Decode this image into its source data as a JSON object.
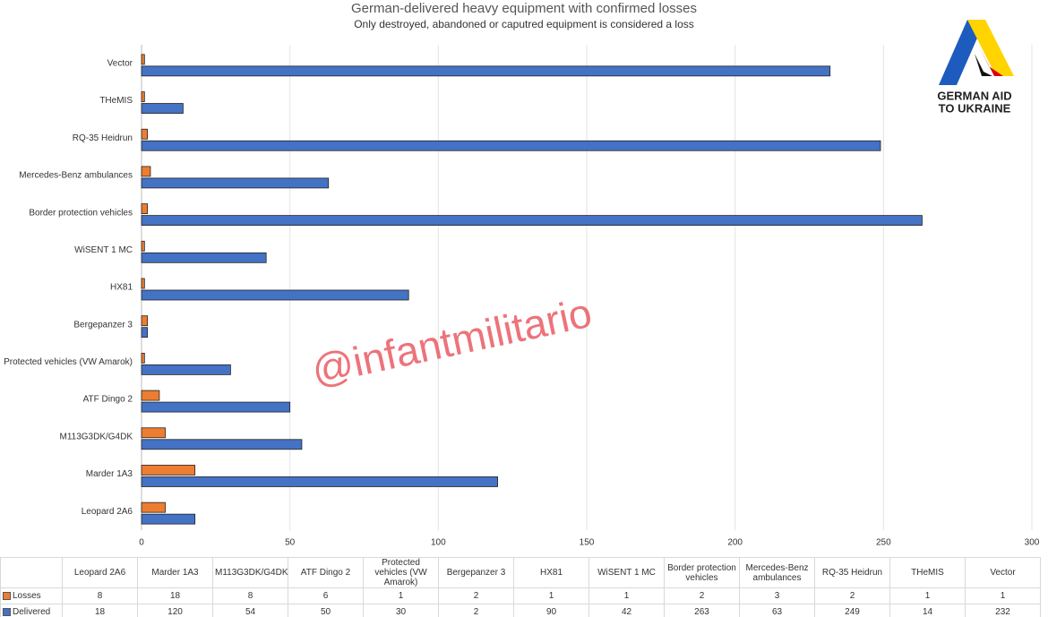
{
  "chart_data": {
    "type": "hbar",
    "title": "German-delivered heavy equipment with confirmed losses",
    "subtitle": "Only destroyed, abandoned or caputred equipment is considered a loss",
    "categories": [
      "Leopard 2A6",
      "Marder 1A3",
      "M113G3DK/G4DK",
      "ATF Dingo 2",
      "Protected vehicles (VW Amarok)",
      "Bergepanzer 3",
      "HX81",
      "WiSENT 1 MC",
      "Border protection vehicles",
      "Mercedes-Benz ambulances",
      "RQ-35 Heidrun",
      "THeMIS",
      "Vector"
    ],
    "series": [
      {
        "name": "Losses",
        "color": "#ed7d31",
        "values": [
          8,
          18,
          8,
          6,
          1,
          2,
          1,
          1,
          2,
          3,
          2,
          1,
          1
        ]
      },
      {
        "name": "Delivered",
        "color": "#4472c4",
        "values": [
          18,
          120,
          54,
          50,
          30,
          2,
          90,
          42,
          263,
          63,
          249,
          14,
          232
        ]
      }
    ],
    "xlim": [
      0,
      300
    ],
    "xticks": [
      0,
      50,
      100,
      150,
      200,
      250,
      300
    ],
    "grid": true,
    "annotations": [
      "@infantmilitario"
    ],
    "logo": [
      "GERMAN AID",
      "TO UKRAINE"
    ]
  }
}
